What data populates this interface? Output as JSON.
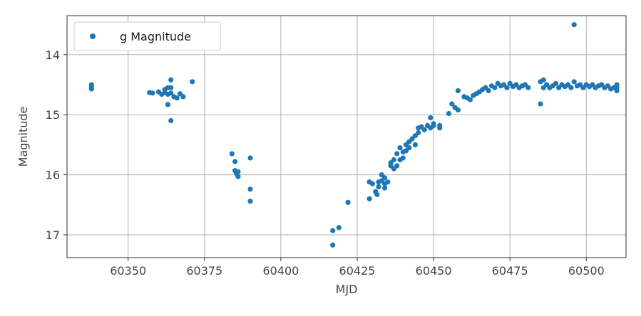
{
  "chart_data": {
    "type": "scatter",
    "title": "",
    "xlabel": "MJD",
    "ylabel": "Magnitude",
    "xlim": [
      60330,
      60513
    ],
    "ylim": [
      17.38,
      13.35
    ],
    "y_inverted": true,
    "grid": true,
    "legend_position": "top-left",
    "xticks": [
      60350,
      60375,
      60400,
      60425,
      60450,
      60475,
      60500
    ],
    "yticks": [
      14,
      15,
      16,
      17
    ],
    "xtick_labels": [
      "60350",
      "60375",
      "60400",
      "60425",
      "60450",
      "60475",
      "60500"
    ],
    "ytick_labels": [
      "14",
      "15",
      "16",
      "17"
    ],
    "series": [
      {
        "name": "g Magnitude",
        "color": "#1f77b4",
        "marker": "circle",
        "x": [
          60338,
          60338,
          60338,
          60357,
          60358,
          60360,
          60361,
          60362,
          60362,
          60363,
          60363,
          60363,
          60364,
          60364,
          60364,
          60364,
          60365,
          60366,
          60367,
          60368,
          60371,
          60384,
          60385,
          60385,
          60385.5,
          60386,
          60386,
          60390,
          60390,
          60390,
          60417,
          60417,
          60419,
          60422,
          60429,
          60429,
          60430,
          60431,
          60431.5,
          60432,
          60432,
          60433,
          60433,
          60434,
          60434,
          60434,
          60435,
          60436,
          60436,
          60437,
          60437,
          60438,
          60438,
          60439,
          60439,
          60440,
          60440,
          60441,
          60441,
          60442,
          60442,
          60443,
          60444,
          60444,
          60445,
          60445,
          60446,
          60447,
          60448,
          60449,
          60449,
          60450,
          60450,
          60452,
          60452,
          60455,
          60456,
          60457,
          60458,
          60458,
          60460,
          60461,
          60462,
          60463,
          60464,
          60465,
          60466,
          60467,
          60468,
          60469,
          60470,
          60471,
          60472,
          60473,
          60474,
          60475,
          60476,
          60477,
          60478,
          60479,
          60480,
          60481,
          60485,
          60485,
          60486,
          60486,
          60487,
          60488,
          60489,
          60490,
          60491,
          60492,
          60493,
          60494,
          60495,
          60496,
          60496,
          60497,
          60498,
          60499,
          60500,
          60501,
          60502,
          60503,
          60504,
          60505,
          60506,
          60507,
          60508,
          60509,
          60510,
          60510,
          60510
        ],
        "y": [
          14.5,
          14.53,
          14.57,
          14.63,
          14.64,
          14.62,
          14.66,
          14.63,
          14.58,
          14.55,
          14.66,
          14.83,
          14.42,
          14.55,
          14.64,
          15.1,
          14.7,
          14.72,
          14.65,
          14.7,
          14.45,
          15.65,
          15.78,
          15.93,
          15.98,
          15.95,
          16.03,
          15.72,
          16.24,
          16.44,
          16.93,
          17.17,
          16.88,
          16.46,
          16.12,
          16.4,
          16.15,
          16.28,
          16.33,
          16.2,
          16.12,
          16.0,
          16.1,
          16.05,
          16.15,
          16.22,
          16.12,
          15.8,
          15.85,
          15.9,
          15.75,
          15.85,
          15.65,
          15.55,
          15.75,
          15.62,
          15.72,
          15.6,
          15.5,
          15.45,
          15.55,
          15.4,
          15.35,
          15.5,
          15.22,
          15.3,
          15.2,
          15.25,
          15.18,
          15.05,
          15.22,
          15.15,
          15.18,
          15.18,
          15.22,
          14.98,
          14.82,
          14.88,
          14.92,
          14.6,
          14.7,
          14.72,
          14.75,
          14.68,
          14.65,
          14.62,
          14.58,
          14.55,
          14.6,
          14.52,
          14.55,
          14.48,
          14.52,
          14.5,
          14.55,
          14.48,
          14.53,
          14.5,
          14.55,
          14.52,
          14.5,
          14.55,
          14.82,
          14.45,
          14.55,
          14.42,
          14.5,
          14.55,
          14.52,
          14.48,
          14.55,
          14.5,
          14.53,
          14.5,
          14.55,
          13.5,
          14.45,
          14.52,
          14.5,
          14.55,
          14.5,
          14.53,
          14.5,
          14.55,
          14.52,
          14.5,
          14.55,
          14.52,
          14.57,
          14.55,
          14.5,
          14.55,
          14.6
        ]
      }
    ]
  }
}
